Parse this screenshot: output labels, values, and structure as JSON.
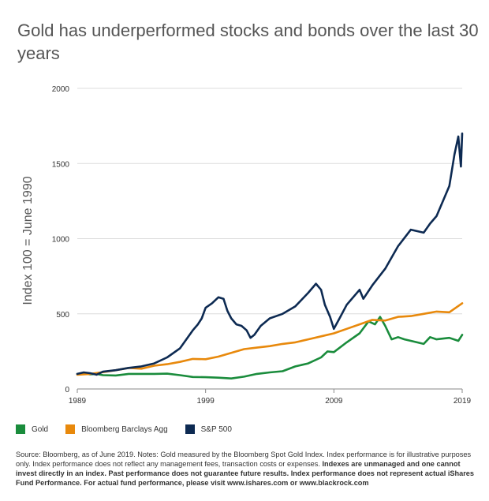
{
  "title": "Gold has underperformed stocks and bonds over the last 30 years",
  "chart_data": {
    "type": "line",
    "ylabel": "Index 100 = June 1990",
    "xlabel": "",
    "ylim": [
      0,
      2000
    ],
    "xlim": [
      1989,
      2019
    ],
    "yticks": [
      0,
      500,
      1000,
      1500,
      2000
    ],
    "yticklabels": [
      "0",
      "500",
      "1000",
      "1500",
      "2000"
    ],
    "xticks": [
      1989,
      1999,
      2009,
      2019
    ],
    "xticklabels": [
      "1989",
      "1999",
      "2009",
      "2019"
    ],
    "grid": "horizontal",
    "legend_position": "bottom",
    "series": [
      {
        "name": "Gold",
        "color": "#1a8c3c",
        "points": [
          [
            1989,
            100
          ],
          [
            1989.5,
            104
          ],
          [
            1990,
            97
          ],
          [
            1990.5,
            100
          ],
          [
            1991,
            92
          ],
          [
            1992,
            90
          ],
          [
            1993,
            100
          ],
          [
            1994,
            100
          ],
          [
            1995,
            100
          ],
          [
            1996,
            102
          ],
          [
            1997,
            92
          ],
          [
            1998,
            80
          ],
          [
            1999,
            78
          ],
          [
            2000,
            75
          ],
          [
            2001,
            70
          ],
          [
            2002,
            82
          ],
          [
            2003,
            100
          ],
          [
            2004,
            110
          ],
          [
            2005,
            118
          ],
          [
            2006,
            150
          ],
          [
            2007,
            170
          ],
          [
            2008,
            210
          ],
          [
            2008.5,
            250
          ],
          [
            2009,
            245
          ],
          [
            2010,
            310
          ],
          [
            2011,
            370
          ],
          [
            2011.7,
            450
          ],
          [
            2012.2,
            430
          ],
          [
            2012.6,
            480
          ],
          [
            2013,
            420
          ],
          [
            2013.5,
            330
          ],
          [
            2014,
            345
          ],
          [
            2014.5,
            330
          ],
          [
            2015,
            320
          ],
          [
            2016,
            300
          ],
          [
            2016.5,
            345
          ],
          [
            2017,
            330
          ],
          [
            2018,
            340
          ],
          [
            2018.7,
            320
          ],
          [
            2019,
            360
          ]
        ]
      },
      {
        "name": "Bloomberg Barclays Agg",
        "color": "#e8890c",
        "points": [
          [
            1989,
            95
          ],
          [
            1990,
            100
          ],
          [
            1991,
            112
          ],
          [
            1992,
            125
          ],
          [
            1993,
            140
          ],
          [
            1994,
            135
          ],
          [
            1995,
            155
          ],
          [
            1996,
            165
          ],
          [
            1997,
            180
          ],
          [
            1998,
            200
          ],
          [
            1999,
            198
          ],
          [
            2000,
            215
          ],
          [
            2001,
            240
          ],
          [
            2002,
            265
          ],
          [
            2003,
            275
          ],
          [
            2004,
            285
          ],
          [
            2005,
            300
          ],
          [
            2006,
            310
          ],
          [
            2007,
            330
          ],
          [
            2008,
            350
          ],
          [
            2009,
            370
          ],
          [
            2010,
            400
          ],
          [
            2011,
            430
          ],
          [
            2012,
            460
          ],
          [
            2013,
            455
          ],
          [
            2014,
            480
          ],
          [
            2015,
            485
          ],
          [
            2016,
            500
          ],
          [
            2017,
            515
          ],
          [
            2018,
            510
          ],
          [
            2019,
            570
          ]
        ]
      },
      {
        "name": "S&P 500",
        "color": "#0d2a52",
        "points": [
          [
            1989,
            100
          ],
          [
            1989.5,
            110
          ],
          [
            1990,
            105
          ],
          [
            1990.5,
            95
          ],
          [
            1991,
            115
          ],
          [
            1992,
            125
          ],
          [
            1993,
            140
          ],
          [
            1994,
            150
          ],
          [
            1995,
            170
          ],
          [
            1996,
            210
          ],
          [
            1997,
            270
          ],
          [
            1997.5,
            330
          ],
          [
            1998,
            390
          ],
          [
            1998.4,
            430
          ],
          [
            1998.7,
            470
          ],
          [
            1999,
            540
          ],
          [
            1999.5,
            570
          ],
          [
            2000,
            610
          ],
          [
            2000.4,
            600
          ],
          [
            2000.7,
            520
          ],
          [
            2001,
            470
          ],
          [
            2001.4,
            430
          ],
          [
            2001.8,
            420
          ],
          [
            2002.2,
            390
          ],
          [
            2002.5,
            340
          ],
          [
            2002.8,
            360
          ],
          [
            2003.3,
            420
          ],
          [
            2004,
            470
          ],
          [
            2005,
            500
          ],
          [
            2006,
            550
          ],
          [
            2007,
            640
          ],
          [
            2007.6,
            700
          ],
          [
            2008,
            660
          ],
          [
            2008.3,
            560
          ],
          [
            2008.7,
            480
          ],
          [
            2009,
            400
          ],
          [
            2009.5,
            480
          ],
          [
            2010,
            560
          ],
          [
            2011,
            660
          ],
          [
            2011.3,
            600
          ],
          [
            2012,
            690
          ],
          [
            2013,
            800
          ],
          [
            2014,
            950
          ],
          [
            2015,
            1060
          ],
          [
            2016,
            1040
          ],
          [
            2016.5,
            1100
          ],
          [
            2017,
            1150
          ],
          [
            2018,
            1350
          ],
          [
            2018.4,
            1560
          ],
          [
            2018.7,
            1680
          ],
          [
            2018.9,
            1480
          ],
          [
            2019,
            1700
          ]
        ]
      }
    ]
  },
  "legend": {
    "items": [
      {
        "label": "Gold",
        "color": "#1a8c3c"
      },
      {
        "label": "Bloomberg Barclays Agg",
        "color": "#e8890c"
      },
      {
        "label": "S&P 500",
        "color": "#0d2a52"
      }
    ]
  },
  "footnote": {
    "plain": "Source: Bloomberg, as of June 2019. Notes: Gold measured by the Bloomberg Spot Gold Index. Index performance is for illustrative purposes only. Index performance does not reflect any management fees, transaction costs or expenses. ",
    "bold": "Indexes are unmanaged and one cannot invest directly in an index. Past performance does not guarantee future results. Index performance does not represent actual iShares Fund Performance. For actual fund performance, please visit www.ishares.com or www.blackrock.com"
  }
}
